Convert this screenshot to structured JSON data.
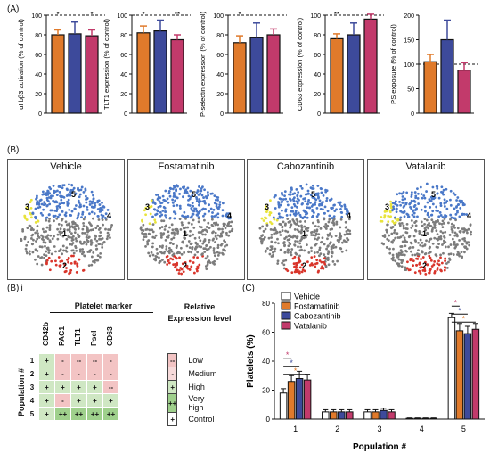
{
  "panel_labels": {
    "a": "(A)",
    "bi": "(B)i",
    "bii": "(B)ii",
    "c": "(C)"
  },
  "colors": {
    "vehicle": "#ffffff",
    "fostamatinib": "#e07a2b",
    "cabozantinib": "#3d4a9b",
    "vatalanib": "#c23a6b",
    "pop1": "#7c7c7c",
    "pop2": "#e8e33a",
    "pop3": "#e8e33a",
    "pop4": "#5bbf4a",
    "pop5": "#4a78c8",
    "red": "#d9352b"
  },
  "chart_data": [
    {
      "type": "bar",
      "ylabel": "αIIbβ3 activation (% of control)",
      "categories": [
        "Fostamatinib",
        "Cabozantinib",
        "Vatalanib"
      ],
      "values": [
        80,
        81,
        79
      ],
      "errors": [
        5,
        12,
        6
      ],
      "ylim": [
        0,
        100
      ],
      "yticks": [
        "0",
        "20",
        "40",
        "60",
        "80",
        "100"
      ],
      "reference": 100,
      "sig": [
        "*",
        "",
        "*"
      ]
    },
    {
      "type": "bar",
      "ylabel": "TLT1 expression (% of control)",
      "categories": [
        "Fostamatinib",
        "Cabozantinib",
        "Vatalanib"
      ],
      "values": [
        82,
        84,
        75
      ],
      "errors": [
        7,
        11,
        5
      ],
      "ylim": [
        0,
        100
      ],
      "yticks": [
        "0",
        "20",
        "40",
        "60",
        "80",
        "100"
      ],
      "reference": 100,
      "sig": [
        "*",
        "",
        "**"
      ]
    },
    {
      "type": "bar",
      "ylabel": "P-selectin expression (% of control)",
      "categories": [
        "Fostamatinib",
        "Cabozantinib",
        "Vatalanib"
      ],
      "values": [
        72,
        77,
        80
      ],
      "errors": [
        7,
        15,
        6
      ],
      "ylim": [
        0,
        100
      ],
      "yticks": [
        "0",
        "20",
        "40",
        "60",
        "80",
        "100"
      ],
      "reference": 100,
      "sig": [
        "*",
        "",
        ""
      ]
    },
    {
      "type": "bar",
      "ylabel": "CD63 expression (% of control)",
      "categories": [
        "Fostamatinib",
        "Cabozantinib",
        "Vatalanib"
      ],
      "values": [
        76,
        80,
        96
      ],
      "errors": [
        5,
        12,
        5
      ],
      "ylim": [
        0,
        100
      ],
      "yticks": [
        "0",
        "20",
        "40",
        "60",
        "80",
        "100"
      ],
      "reference": 100,
      "sig": [
        "**",
        "",
        ""
      ]
    },
    {
      "type": "bar",
      "ylabel": "PS exposure (% of control)",
      "categories": [
        "Fostamatinib",
        "Cabozantinib",
        "Vatalanib"
      ],
      "values": [
        105,
        150,
        88
      ],
      "errors": [
        15,
        40,
        15
      ],
      "ylim": [
        0,
        200
      ],
      "yticks": [
        "0",
        "50",
        "100",
        "150",
        "200"
      ],
      "reference": 100,
      "sig": [
        "",
        "",
        ""
      ]
    },
    {
      "type": "bar",
      "title": "",
      "xlabel": "Population #",
      "ylabel": "Platelets (%)",
      "categories": [
        "1",
        "2",
        "3",
        "4",
        "5"
      ],
      "series": [
        {
          "name": "Vehicle",
          "values": [
            18,
            5,
            5,
            0.5,
            70
          ],
          "errors": [
            3,
            1.5,
            1.5,
            0.3,
            3
          ]
        },
        {
          "name": "Fostamatinib",
          "values": [
            26,
            5,
            5,
            0.5,
            61
          ],
          "errors": [
            4,
            1.5,
            1.5,
            0.3,
            5
          ]
        },
        {
          "name": "Cabozantinib",
          "values": [
            28,
            5,
            6,
            0.5,
            59
          ],
          "errors": [
            5,
            1.5,
            1.5,
            0.3,
            5
          ]
        },
        {
          "name": "Vatalanib",
          "values": [
            27,
            5,
            5,
            0.5,
            62
          ],
          "errors": [
            4,
            1.5,
            1.5,
            0.3,
            4
          ]
        }
      ],
      "ylim": [
        0,
        80
      ],
      "yticks": [
        "0",
        "20",
        "40",
        "60",
        "80"
      ],
      "legend": "top-left",
      "sig": [
        {
          "category": "1",
          "stars": [
            "*",
            "*",
            "*"
          ]
        },
        {
          "category": "5",
          "stars": [
            "*",
            "*",
            "*"
          ]
        }
      ]
    }
  ],
  "tsne": {
    "titles": [
      "Vehicle",
      "Fostamatinib",
      "Cabozantinib",
      "Vatalanib"
    ],
    "cluster_labels": [
      "3",
      "5",
      "4",
      "1",
      "2"
    ]
  },
  "marker_table": {
    "header": "Platelet marker",
    "columns": [
      "CD42b",
      "PAC1",
      "TLT1",
      "Psel",
      "CD63"
    ],
    "row_axis": "Population #",
    "rows": [
      {
        "id": "1",
        "cells": [
          "+",
          "-",
          "--",
          "--",
          "-"
        ],
        "shade": [
          "g",
          "r",
          "r",
          "r",
          "r"
        ]
      },
      {
        "id": "2",
        "cells": [
          "+",
          "-",
          "-",
          "-",
          "-"
        ],
        "shade": [
          "g",
          "r",
          "r",
          "r",
          "r"
        ]
      },
      {
        "id": "3",
        "cells": [
          "+",
          "+",
          "+",
          "+",
          "--"
        ],
        "shade": [
          "g",
          "g",
          "g",
          "g",
          "r"
        ]
      },
      {
        "id": "4",
        "cells": [
          "+",
          "-",
          "+",
          "+",
          "+"
        ],
        "shade": [
          "g",
          "r",
          "g",
          "g",
          "g"
        ]
      },
      {
        "id": "5",
        "cells": [
          "+",
          "++",
          "++",
          "++",
          "++"
        ],
        "shade": [
          "g",
          "gg",
          "gg",
          "gg",
          "gg"
        ]
      }
    ],
    "relative_header": "Relative Expression level",
    "relative": [
      {
        "symbol": "--",
        "label": "Low",
        "shade": "r"
      },
      {
        "symbol": "-",
        "label": "Medium",
        "shade": "rr"
      },
      {
        "symbol": "+",
        "label": "High",
        "shade": "g"
      },
      {
        "symbol": "++",
        "label": "Very high",
        "shade": "gg"
      },
      {
        "symbol": "+",
        "label": "Control",
        "shade": "w"
      }
    ]
  }
}
